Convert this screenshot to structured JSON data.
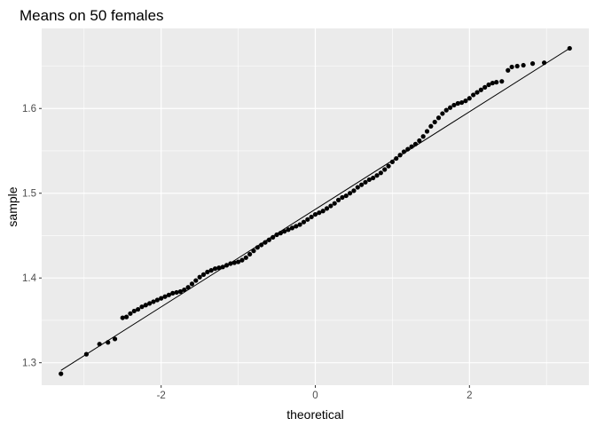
{
  "chart_data": {
    "type": "scatter",
    "title": "Means on 50 females",
    "xlabel": "theoretical",
    "ylabel": "sample",
    "xlim": [
      -3.55,
      3.55
    ],
    "ylim": [
      1.2735,
      1.6945
    ],
    "x_ticks": [
      -2,
      0,
      2
    ],
    "x_tick_labels": [
      "-2",
      "0",
      "2"
    ],
    "y_ticks": [
      1.3,
      1.4,
      1.5,
      1.6
    ],
    "y_tick_labels": [
      "1.3",
      "1.4",
      "1.5",
      "1.6"
    ],
    "grid": true,
    "reference_line": {
      "x": [
        -3.3,
        3.3
      ],
      "y": [
        1.291,
        1.671
      ]
    },
    "series": [
      {
        "points": [
          [
            -3.3,
            1.287
          ],
          [
            -2.97,
            1.31
          ],
          [
            -2.8,
            1.322
          ],
          [
            -2.69,
            1.324
          ],
          [
            -2.6,
            1.328
          ],
          [
            -2.5,
            1.353
          ],
          [
            -2.45,
            1.354
          ],
          [
            -2.4,
            1.358
          ],
          [
            -2.35,
            1.361
          ],
          [
            -2.3,
            1.363
          ],
          [
            -2.25,
            1.366
          ],
          [
            -2.2,
            1.368
          ],
          [
            -2.15,
            1.37
          ],
          [
            -2.1,
            1.372
          ],
          [
            -2.05,
            1.374
          ],
          [
            -2.0,
            1.376
          ],
          [
            -1.95,
            1.378
          ],
          [
            -1.9,
            1.38
          ],
          [
            -1.85,
            1.382
          ],
          [
            -1.8,
            1.383
          ],
          [
            -1.75,
            1.384
          ],
          [
            -1.7,
            1.386
          ],
          [
            -1.65,
            1.389
          ],
          [
            -1.6,
            1.393
          ],
          [
            -1.55,
            1.397
          ],
          [
            -1.5,
            1.401
          ],
          [
            -1.45,
            1.404
          ],
          [
            -1.4,
            1.407
          ],
          [
            -1.35,
            1.409
          ],
          [
            -1.3,
            1.411
          ],
          [
            -1.25,
            1.412
          ],
          [
            -1.2,
            1.413
          ],
          [
            -1.15,
            1.415
          ],
          [
            -1.1,
            1.417
          ],
          [
            -1.05,
            1.418
          ],
          [
            -1.0,
            1.419
          ],
          [
            -0.95,
            1.421
          ],
          [
            -0.9,
            1.424
          ],
          [
            -0.85,
            1.428
          ],
          [
            -0.8,
            1.432
          ],
          [
            -0.75,
            1.436
          ],
          [
            -0.7,
            1.439
          ],
          [
            -0.65,
            1.442
          ],
          [
            -0.6,
            1.445
          ],
          [
            -0.55,
            1.448
          ],
          [
            -0.5,
            1.451
          ],
          [
            -0.45,
            1.453
          ],
          [
            -0.4,
            1.455
          ],
          [
            -0.35,
            1.457
          ],
          [
            -0.3,
            1.459
          ],
          [
            -0.25,
            1.461
          ],
          [
            -0.2,
            1.463
          ],
          [
            -0.15,
            1.466
          ],
          [
            -0.1,
            1.469
          ],
          [
            -0.05,
            1.472
          ],
          [
            0.0,
            1.475
          ],
          [
            0.05,
            1.477
          ],
          [
            0.1,
            1.479
          ],
          [
            0.15,
            1.482
          ],
          [
            0.2,
            1.485
          ],
          [
            0.25,
            1.488
          ],
          [
            0.3,
            1.492
          ],
          [
            0.35,
            1.495
          ],
          [
            0.4,
            1.497
          ],
          [
            0.45,
            1.5
          ],
          [
            0.5,
            1.503
          ],
          [
            0.55,
            1.507
          ],
          [
            0.6,
            1.51
          ],
          [
            0.65,
            1.513
          ],
          [
            0.7,
            1.516
          ],
          [
            0.75,
            1.518
          ],
          [
            0.8,
            1.521
          ],
          [
            0.85,
            1.524
          ],
          [
            0.9,
            1.528
          ],
          [
            0.95,
            1.532
          ],
          [
            1.0,
            1.537
          ],
          [
            1.05,
            1.541
          ],
          [
            1.1,
            1.545
          ],
          [
            1.15,
            1.549
          ],
          [
            1.2,
            1.552
          ],
          [
            1.25,
            1.555
          ],
          [
            1.3,
            1.558
          ],
          [
            1.35,
            1.562
          ],
          [
            1.4,
            1.567
          ],
          [
            1.45,
            1.573
          ],
          [
            1.5,
            1.579
          ],
          [
            1.55,
            1.584
          ],
          [
            1.6,
            1.589
          ],
          [
            1.65,
            1.594
          ],
          [
            1.7,
            1.598
          ],
          [
            1.75,
            1.601
          ],
          [
            1.8,
            1.604
          ],
          [
            1.85,
            1.606
          ],
          [
            1.9,
            1.607
          ],
          [
            1.95,
            1.609
          ],
          [
            2.0,
            1.612
          ],
          [
            2.05,
            1.616
          ],
          [
            2.1,
            1.619
          ],
          [
            2.15,
            1.622
          ],
          [
            2.2,
            1.625
          ],
          [
            2.25,
            1.628
          ],
          [
            2.3,
            1.63
          ],
          [
            2.35,
            1.631
          ],
          [
            2.42,
            1.632
          ],
          [
            2.5,
            1.645
          ],
          [
            2.55,
            1.649
          ],
          [
            2.62,
            1.65
          ],
          [
            2.7,
            1.651
          ],
          [
            2.82,
            1.653
          ],
          [
            2.97,
            1.654
          ],
          [
            3.3,
            1.671
          ]
        ]
      }
    ]
  }
}
